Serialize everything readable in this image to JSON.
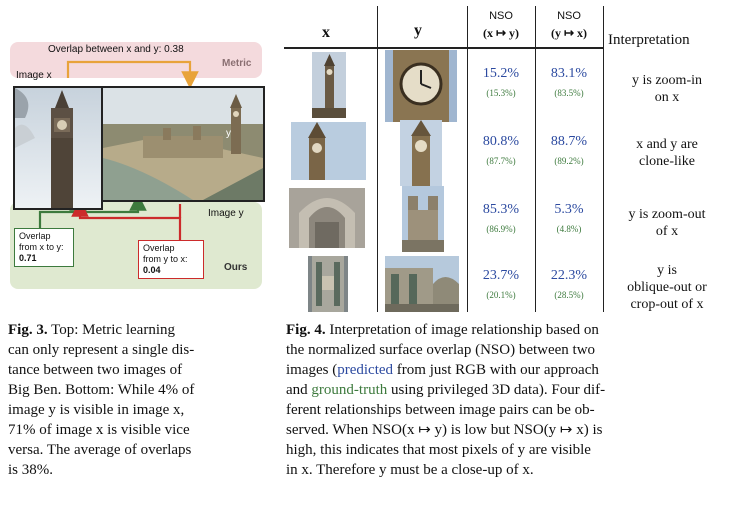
{
  "fig3": {
    "metric_overlap": "Overlap between x and y: 0.38",
    "metric_label": "Metric",
    "image_x_label": "Image x",
    "image_y_label": "Image y",
    "y_marker": "y",
    "overlap_x_to_y_line1": "Overlap",
    "overlap_x_to_y_line2": "from x to y:",
    "overlap_x_to_y_value": "0.71",
    "overlap_y_to_x_line1": "Overlap",
    "overlap_y_to_x_line2": "from y to x:",
    "overlap_y_to_x_value": "0.04",
    "ours_label": "Ours",
    "colors": {
      "metric_arrow": "#e8a33a",
      "x_to_y": "#3d7a3d",
      "y_to_x": "#cc2b2b"
    }
  },
  "fig4": {
    "headers": {
      "x": "x",
      "y": "y",
      "nso_xy_top": "NSO",
      "nso_xy_bottom": "(x ↦ y)",
      "nso_yx_top": "NSO",
      "nso_yx_bottom": "(y ↦ x)",
      "interp": "Interpretation"
    },
    "rows": [
      {
        "pred_xy": "15.2%",
        "gt_xy": "(15.3%)",
        "pred_yx": "83.1%",
        "gt_yx": "(83.5%)",
        "interp1": "y is zoom-in",
        "interp2": "on x"
      },
      {
        "pred_xy": "80.8%",
        "gt_xy": "(87.7%)",
        "pred_yx": "88.7%",
        "gt_yx": "(89.2%)",
        "interp1": "x and y are",
        "interp2": "clone-like"
      },
      {
        "pred_xy": "85.3%",
        "gt_xy": "(86.9%)",
        "pred_yx": "5.3%",
        "gt_yx": "(4.8%)",
        "interp1": "y is zoom-out",
        "interp2": "of x"
      },
      {
        "pred_xy": "23.7%",
        "gt_xy": "(20.1%)",
        "pred_yx": "22.3%",
        "gt_yx": "(28.5%)",
        "interp1": "y is",
        "interp2": "oblique-out or",
        "interp3": "crop-out of x"
      }
    ]
  },
  "captions": {
    "fig3_label": "Fig. 3.",
    "fig3_l1": " Top: Metric learning",
    "fig3_l2": "can only represent a single dis-",
    "fig3_l3": "tance between two images of",
    "fig3_l4": "Big Ben. Bottom: While 4% of",
    "fig3_l5": "image y is visible in image x,",
    "fig3_l6": "71% of image x is visible vice",
    "fig3_l7": "versa. The average of overlaps",
    "fig3_l8": "is 38%.",
    "fig4_label": "Fig. 4.",
    "fig4_l1": " Interpretation of image relationship based on",
    "fig4_l2": "the normalized surface overlap (NSO) between two",
    "fig4_l3a": "images (",
    "fig4_l3_pred": "predicted",
    "fig4_l3b": " from just RGB with our approach",
    "fig4_l4a": "and ",
    "fig4_l4_gt": "ground-truth",
    "fig4_l4b": " using privileged 3D data). Four dif-",
    "fig4_l5": "ferent relationships between image pairs can be ob-",
    "fig4_l6": "served. When NSO(x ↦ y) is low but NSO(y ↦ x) is",
    "fig4_l7": "high, this indicates that most pixels of y are visible",
    "fig4_l8": "in x. Therefore y must be a close-up of x."
  }
}
